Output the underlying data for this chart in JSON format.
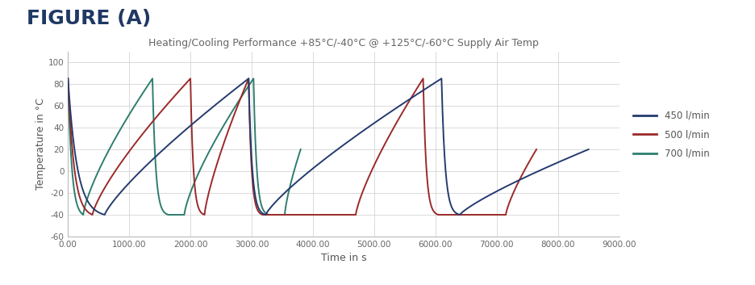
{
  "title_main": "FIGURE (A)",
  "title_main_color": "#1F3864",
  "subtitle": "Heating/Cooling Performance +85°C/-40°C @ +125°C/-60°C Supply Air Temp",
  "xlabel": "Time in s",
  "ylabel": "Temperature in °C",
  "xlim": [
    0,
    9000
  ],
  "ylim": [
    -60,
    110
  ],
  "yticks": [
    -60,
    -40,
    -20,
    0,
    20,
    40,
    60,
    80,
    100
  ],
  "xticks": [
    0,
    1000,
    2000,
    3000,
    4000,
    5000,
    6000,
    7000,
    8000,
    9000
  ],
  "xtick_labels": [
    "0.00",
    "1000.00",
    "2000.00",
    "3000.00",
    "4000.00",
    "5000.00",
    "6000.00",
    "7000.00",
    "8000.00",
    "9000.00"
  ],
  "colors": {
    "blue": "#253B6E",
    "red": "#9B2A2A",
    "teal": "#2E7D6E"
  },
  "legend_labels": [
    "450 l/min",
    "500 l/min",
    "700 l/min"
  ],
  "background_color": "#FFFFFF",
  "grid_color": "#CCCCCC",
  "linewidth": 1.4,
  "fig_width": 9.36,
  "fig_height": 3.53,
  "dpi": 100
}
